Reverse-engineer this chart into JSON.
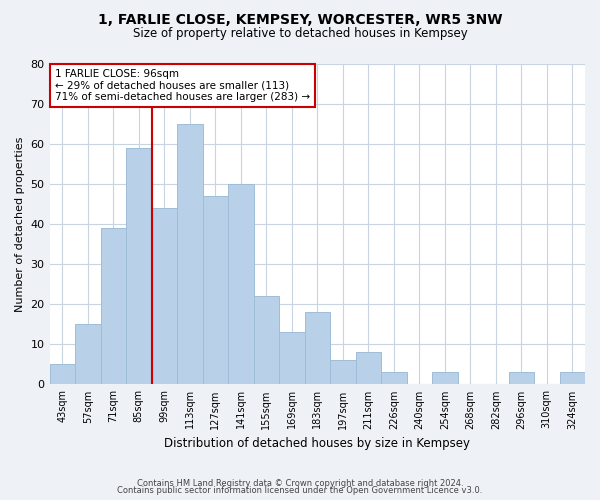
{
  "title": "1, FARLIE CLOSE, KEMPSEY, WORCESTER, WR5 3NW",
  "subtitle": "Size of property relative to detached houses in Kempsey",
  "xlabel": "Distribution of detached houses by size in Kempsey",
  "ylabel": "Number of detached properties",
  "categories": [
    "43sqm",
    "57sqm",
    "71sqm",
    "85sqm",
    "99sqm",
    "113sqm",
    "127sqm",
    "141sqm",
    "155sqm",
    "169sqm",
    "183sqm",
    "197sqm",
    "211sqm",
    "226sqm",
    "240sqm",
    "254sqm",
    "268sqm",
    "282sqm",
    "296sqm",
    "310sqm",
    "324sqm"
  ],
  "values": [
    5,
    15,
    39,
    59,
    44,
    65,
    47,
    50,
    22,
    13,
    18,
    6,
    8,
    3,
    0,
    3,
    0,
    0,
    3,
    0,
    3
  ],
  "bar_color": "#b8d0e8",
  "bar_edge_color": "#a0bdd8",
  "marker_line_color": "#cc0000",
  "marker_line_index": 3.5,
  "annotation_line1": "1 FARLIE CLOSE: 96sqm",
  "annotation_line2": "← 29% of detached houses are smaller (113)",
  "annotation_line3": "71% of semi-detached houses are larger (283) →",
  "annotation_box_color": "#ffffff",
  "annotation_box_edge": "#cc0000",
  "ylim": [
    0,
    80
  ],
  "yticks": [
    0,
    10,
    20,
    30,
    40,
    50,
    60,
    70,
    80
  ],
  "footer_line1": "Contains HM Land Registry data © Crown copyright and database right 2024.",
  "footer_line2": "Contains public sector information licensed under the Open Government Licence v3.0.",
  "bg_color": "#eef2f7",
  "plot_bg_color": "#ffffff",
  "grid_color": "#c8d4e0",
  "title_fontsize": 10,
  "subtitle_fontsize": 8.5
}
